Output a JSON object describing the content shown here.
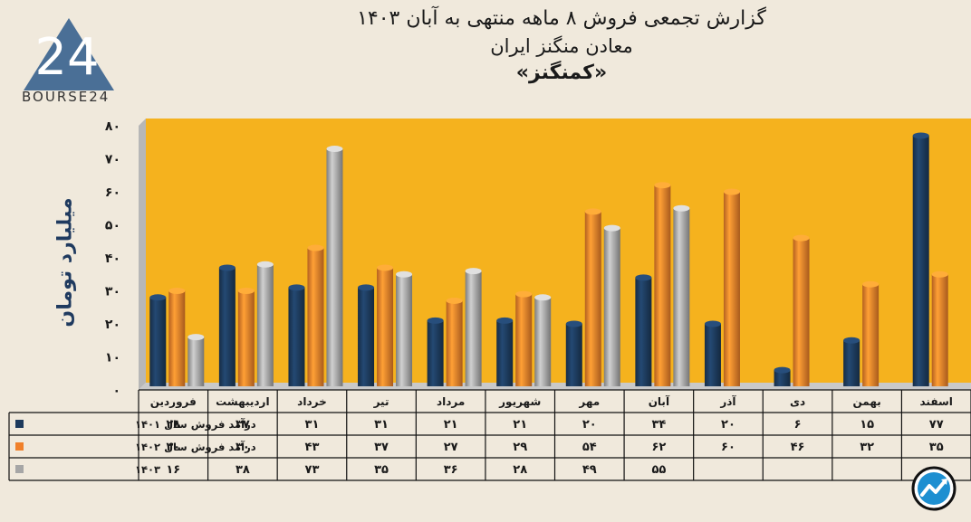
{
  "title": {
    "line1": "گزارش تجمعی فروش ۸ ماهه منتهی به آبان ۱۴۰۳",
    "line2": "معادن منگنز ایران",
    "line3": "«کمنگنز»"
  },
  "logo": {
    "text": "BOURSE24",
    "mark": "24"
  },
  "chart_data": {
    "type": "bar",
    "title": "گزارش تجمعی فروش ۸ ماهه منتهی به آبان ۱۴۰۳",
    "ylabel": "میلیارد تومان",
    "xlabel": "",
    "ylim": [
      0,
      80
    ],
    "yticks": [
      "۰",
      "۱۰",
      "۲۰",
      "۳۰",
      "۴۰",
      "۵۰",
      "۶۰",
      "۷۰",
      "۸۰"
    ],
    "categories": [
      "فروردین",
      "اردیبهشت",
      "خرداد",
      "تیر",
      "مرداد",
      "شهریور",
      "مهر",
      "آبان",
      "آذر",
      "دی",
      "بهمن",
      "اسفند"
    ],
    "series": [
      {
        "name": "درآمد فروش سال ۱۴۰۱",
        "color": "#1d3a5c",
        "values": [
          28,
          37,
          31,
          31,
          21,
          21,
          20,
          34,
          20,
          6,
          15,
          77
        ],
        "labels": [
          "۲۸",
          "۳۷",
          "۳۱",
          "۳۱",
          "۲۱",
          "۲۱",
          "۲۰",
          "۳۴",
          "۲۰",
          "۶",
          "۱۵",
          "۷۷"
        ]
      },
      {
        "name": "درآمد فروش سال ۱۴۰۲",
        "color": "#f0802a",
        "values": [
          30,
          30,
          43,
          37,
          27,
          29,
          54,
          62,
          60,
          46,
          32,
          35
        ],
        "labels": [
          "۳۰",
          "۳۰",
          "۴۳",
          "۳۷",
          "۲۷",
          "۲۹",
          "۵۴",
          "۶۲",
          "۶۰",
          "۴۶",
          "۳۲",
          "۳۵"
        ]
      },
      {
        "name": "۱۴۰۳",
        "color": "#a6a6a6",
        "values": [
          16,
          38,
          73,
          35,
          36,
          28,
          49,
          55,
          null,
          null,
          null,
          null
        ],
        "labels": [
          "۱۶",
          "۳۸",
          "۷۳",
          "۳۵",
          "۳۶",
          "۲۸",
          "۴۹",
          "۵۵",
          "",
          "",
          "",
          ""
        ]
      }
    ],
    "plot_background": "#f5b21e",
    "grid": false,
    "legend": "data-table-left"
  }
}
